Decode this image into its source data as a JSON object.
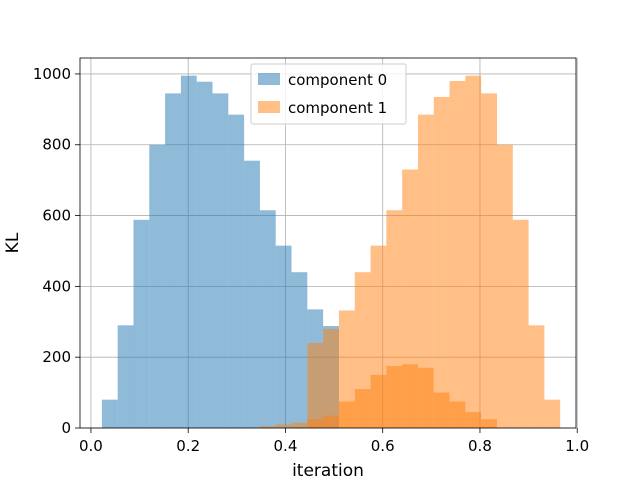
{
  "chart_data": {
    "type": "histogram",
    "xlabel": "iteration",
    "ylabel": "KL",
    "xlim": [
      -0.0225,
      0.9975
    ],
    "ylim": [
      0,
      1045
    ],
    "x_ticks": [
      "0.0",
      "0.2",
      "0.4",
      "0.6",
      "0.8",
      "1.0"
    ],
    "x_tick_values": [
      0.0,
      0.2,
      0.4,
      0.6,
      0.8,
      1.0
    ],
    "y_ticks": [
      "0",
      "200",
      "400",
      "600",
      "800",
      "1000"
    ],
    "y_tick_values": [
      0,
      200,
      400,
      600,
      800,
      1000
    ],
    "grid": true,
    "legend_position": "top-center",
    "bin_edges": [
      0.0225,
      0.055,
      0.0875,
      0.12,
      0.1525,
      0.185,
      0.2175,
      0.25,
      0.2825,
      0.315,
      0.3475,
      0.38,
      0.4125,
      0.445,
      0.4775,
      0.51,
      0.5425,
      0.575,
      0.6075,
      0.64,
      0.6725,
      0.705,
      0.7375,
      0.77,
      0.8025,
      0.835,
      0.8675,
      0.9,
      0.9325,
      0.965
    ],
    "series": [
      {
        "name": "component 0",
        "color": "#1f77b4",
        "bin_start": 0.0225,
        "values": [
          80,
          290,
          588,
          800,
          945,
          995,
          978,
          945,
          885,
          755,
          615,
          515,
          440,
          335,
          288
        ]
      },
      {
        "name": "component 1",
        "color": "#ff7f0e",
        "bin_start": 0.3475,
        "values": [
          5,
          10,
          15,
          25,
          35,
          75,
          110,
          150,
          175,
          180,
          170,
          100,
          75,
          45,
          25
        ],
        "bin_start_upper": 0.445,
        "upper_values": [
          240,
          280,
          332,
          440,
          515,
          615,
          730,
          885,
          935,
          980,
          995,
          945,
          800,
          588,
          290,
          80
        ]
      }
    ]
  }
}
